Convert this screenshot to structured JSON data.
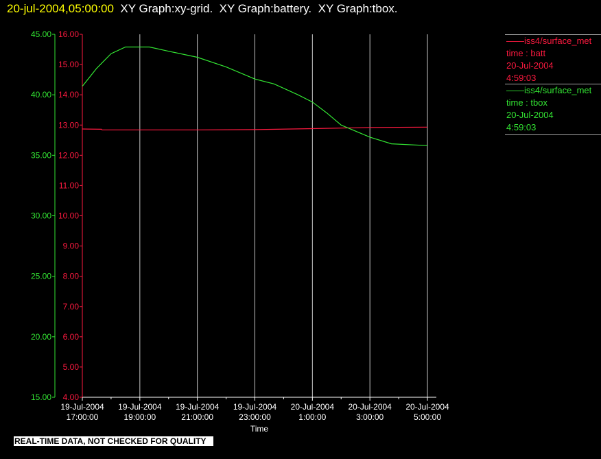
{
  "header": {
    "date": "20-jul-2004,05:00:00",
    "graphs": "  XY Graph:xy-grid.  XY Graph:battery.  XY Graph:tbox."
  },
  "legend": [
    {
      "name": "iss4/surface_met",
      "field": "time : batt",
      "date": "20-Jul-2004",
      "time": "4:59:03",
      "color": "#ff1a40"
    },
    {
      "name": "iss4/surface_met",
      "field": "time : tbox",
      "date": "20-Jul-2004",
      "time": "4:59:03",
      "color": "#33e633"
    }
  ],
  "footer_note": "REAL-TIME DATA, NOT CHECKED FOR QUALITY",
  "chart_data": {
    "type": "line",
    "xlabel": "Time",
    "xlim": [
      "2004-07-19T17:00",
      "2004-07-20T05:00"
    ],
    "x_ticks": [
      {
        "t": "2004-07-19T17:00",
        "d": "19-Jul-2004",
        "h": "17:00:00"
      },
      {
        "t": "2004-07-19T19:00",
        "d": "19-Jul-2004",
        "h": "19:00:00"
      },
      {
        "t": "2004-07-19T21:00",
        "d": "19-Jul-2004",
        "h": "21:00:00"
      },
      {
        "t": "2004-07-19T23:00",
        "d": "19-Jul-2004",
        "h": "23:00:00"
      },
      {
        "t": "2004-07-20T01:00",
        "d": "20-Jul-2004",
        "h": "1:00:00"
      },
      {
        "t": "2004-07-20T03:00",
        "d": "20-Jul-2004",
        "h": "3:00:00"
      },
      {
        "t": "2004-07-20T05:00",
        "d": "20-Jul-2004",
        "h": "5:00:00"
      }
    ],
    "grid": "vertical",
    "axes": [
      {
        "id": "batt",
        "ylim": [
          4,
          16
        ],
        "ticks": [
          "4.00",
          "5.00",
          "6.00",
          "7.00",
          "8.00",
          "9.00",
          "10.00",
          "11.00",
          "12.00",
          "13.00",
          "14.00",
          "15.00",
          "16.00"
        ],
        "color": "#ff1a40"
      },
      {
        "id": "tbox",
        "ylim": [
          15,
          45
        ],
        "ticks": [
          "15.00",
          "20.00",
          "25.00",
          "30.00",
          "35.00",
          "40.00",
          "45.00"
        ],
        "color": "#33e633"
      }
    ],
    "series": [
      {
        "axis": "batt",
        "color": "#ff1a40",
        "x": [
          "2004-07-19T17:00",
          "2004-07-19T17:40",
          "2004-07-19T17:41",
          "2004-07-19T21:00",
          "2004-07-19T23:00",
          "2004-07-20T01:00",
          "2004-07-20T03:00",
          "2004-07-20T05:00"
        ],
        "y": [
          12.87,
          12.86,
          12.84,
          12.84,
          12.85,
          12.88,
          12.92,
          12.93
        ]
      },
      {
        "axis": "tbox",
        "color": "#33e633",
        "x": [
          "2004-07-19T17:00",
          "2004-07-19T17:30",
          "2004-07-19T18:00",
          "2004-07-19T18:30",
          "2004-07-19T19:00",
          "2004-07-19T19:20",
          "2004-07-19T20:00",
          "2004-07-19T21:00",
          "2004-07-19T22:00",
          "2004-07-19T23:00",
          "2004-07-19T23:40",
          "2004-07-20T00:30",
          "2004-07-20T01:00",
          "2004-07-20T01:30",
          "2004-07-20T02:00",
          "2004-07-20T03:00",
          "2004-07-20T03:45",
          "2004-07-20T05:00"
        ],
        "y": [
          40.7,
          42.2,
          43.4,
          43.95,
          43.95,
          43.95,
          43.6,
          43.1,
          42.3,
          41.3,
          40.9,
          40.0,
          39.4,
          38.5,
          37.5,
          36.5,
          35.95,
          35.8
        ]
      }
    ]
  }
}
